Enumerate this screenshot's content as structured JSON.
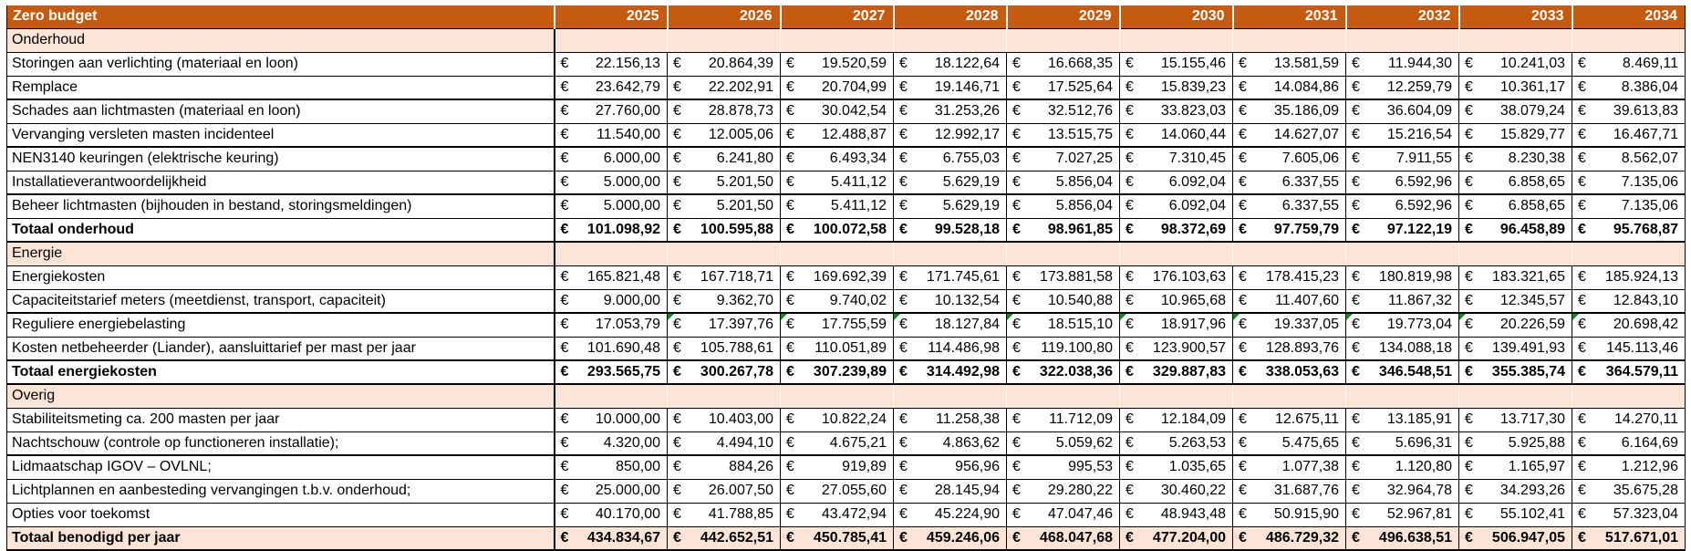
{
  "header": {
    "title": "Zero budget",
    "years": [
      "2025",
      "2026",
      "2027",
      "2028",
      "2029",
      "2030",
      "2031",
      "2032",
      "2033",
      "2034"
    ]
  },
  "currency_symbol": "€",
  "colors": {
    "header_bg": "#C55A11",
    "header_text": "#FFFFFF",
    "section_bg": "#FCE4D6",
    "border": "#000000",
    "flag_green": "#1E7E34"
  },
  "sections": [
    {
      "label": "Onderhoud",
      "rows": [
        {
          "label": "Storingen aan verlichting (materiaal en loon)",
          "values": [
            "22.156,13",
            "20.864,39",
            "19.520,59",
            "18.122,64",
            "16.668,35",
            "15.155,46",
            "13.581,59",
            "11.944,30",
            "10.241,03",
            "8.469,11"
          ]
        },
        {
          "label": "Remplace",
          "thick_below": true,
          "values": [
            "23.642,79",
            "22.202,91",
            "20.704,99",
            "19.146,71",
            "17.525,64",
            "15.839,23",
            "14.084,86",
            "12.259,79",
            "10.361,17",
            "8.386,04"
          ]
        },
        {
          "label": "Schades aan lichtmasten (materiaal en loon)",
          "values": [
            "27.760,00",
            "28.878,73",
            "30.042,54",
            "31.253,26",
            "32.512,76",
            "33.823,03",
            "35.186,09",
            "36.604,09",
            "38.079,24",
            "39.613,83"
          ]
        },
        {
          "label": "Vervanging versleten masten incidenteel",
          "thick_below": true,
          "values": [
            "11.540,00",
            "12.005,06",
            "12.488,87",
            "12.992,17",
            "13.515,75",
            "14.060,44",
            "14.627,07",
            "15.216,54",
            "15.829,77",
            "16.467,71"
          ]
        },
        {
          "label": "NEN3140 keuringen (elektrische keuring)",
          "values": [
            "6.000,00",
            "6.241,80",
            "6.493,34",
            "6.755,03",
            "7.027,25",
            "7.310,45",
            "7.605,06",
            "7.911,55",
            "8.230,38",
            "8.562,07"
          ]
        },
        {
          "label": "Installatieverantwoordelijkheid",
          "thick_below": true,
          "values": [
            "5.000,00",
            "5.201,50",
            "5.411,12",
            "5.629,19",
            "5.856,04",
            "6.092,04",
            "6.337,55",
            "6.592,96",
            "6.858,65",
            "7.135,06"
          ]
        },
        {
          "label": "Beheer lichtmasten (bijhouden in bestand, storingsmeldingen)",
          "values": [
            "5.000,00",
            "5.201,50",
            "5.411,12",
            "5.629,19",
            "5.856,04",
            "6.092,04",
            "6.337,55",
            "6.592,96",
            "6.858,65",
            "7.135,06"
          ]
        }
      ],
      "total": {
        "label": "Totaal onderhoud",
        "thick_below": true,
        "values": [
          "101.098,92",
          "100.595,88",
          "100.072,58",
          "99.528,18",
          "98.961,85",
          "98.372,69",
          "97.759,79",
          "97.122,19",
          "96.458,89",
          "95.768,87"
        ]
      }
    },
    {
      "label": "Energie",
      "rows": [
        {
          "label": "Energiekosten",
          "values": [
            "165.821,48",
            "167.718,71",
            "169.692,39",
            "171.745,61",
            "173.881,58",
            "176.103,63",
            "178.415,23",
            "180.819,98",
            "183.321,65",
            "185.924,13"
          ]
        },
        {
          "label": "Capaciteitstarief meters (meetdienst, transport, capaciteit)",
          "thick_below": true,
          "values": [
            "9.000,00",
            "9.362,70",
            "9.740,02",
            "10.132,54",
            "10.540,88",
            "10.965,68",
            "11.407,60",
            "11.867,32",
            "12.345,57",
            "12.843,10"
          ]
        },
        {
          "label": "Reguliere energiebelasting",
          "flags": [
            false,
            true,
            true,
            true,
            true,
            true,
            true,
            true,
            true,
            true
          ],
          "values": [
            "17.053,79",
            "17.397,76",
            "17.755,59",
            "18.127,84",
            "18.515,10",
            "18.917,96",
            "19.337,05",
            "19.773,04",
            "20.226,59",
            "20.698,42"
          ]
        },
        {
          "label": "Kosten netbeheerder (Liander), aansluittarief per mast per jaar",
          "thick_below": true,
          "values": [
            "101.690,48",
            "105.788,61",
            "110.051,89",
            "114.486,98",
            "119.100,80",
            "123.900,57",
            "128.893,76",
            "134.088,18",
            "139.491,93",
            "145.113,46"
          ]
        }
      ],
      "total": {
        "label": "Totaal energiekosten",
        "thick_below": true,
        "values": [
          "293.565,75",
          "300.267,78",
          "307.239,89",
          "314.492,98",
          "322.038,36",
          "329.887,83",
          "338.053,63",
          "346.548,51",
          "355.385,74",
          "364.579,11"
        ]
      }
    },
    {
      "label": "Overig",
      "rows": [
        {
          "label": "Stabiliteitsmeting ca. 200 masten per jaar",
          "values": [
            "10.000,00",
            "10.403,00",
            "10.822,24",
            "11.258,38",
            "11.712,09",
            "12.184,09",
            "12.675,11",
            "13.185,91",
            "13.717,30",
            "14.270,11"
          ]
        },
        {
          "label": "Nachtschouw (controle op functioneren installatie);",
          "thick_below": true,
          "values": [
            "4.320,00",
            "4.494,10",
            "4.675,21",
            "4.863,62",
            "5.059,62",
            "5.263,53",
            "5.475,65",
            "5.696,31",
            "5.925,88",
            "6.164,69"
          ]
        },
        {
          "label": "Lidmaatschap IGOV – OVLNL;",
          "values": [
            "850,00",
            "884,26",
            "919,89",
            "956,96",
            "995,53",
            "1.035,65",
            "1.077,38",
            "1.120,80",
            "1.165,97",
            "1.212,96"
          ]
        },
        {
          "label": "Lichtplannen en aanbesteding vervangingen t.b.v. onderhoud;",
          "values": [
            "25.000,00",
            "26.007,50",
            "27.055,60",
            "28.145,94",
            "29.280,22",
            "30.460,22",
            "31.687,76",
            "32.964,78",
            "34.293,26",
            "35.675,28"
          ]
        },
        {
          "label": "Opties voor toekomst",
          "values": [
            "40.170,00",
            "41.788,85",
            "43.472,94",
            "45.224,90",
            "47.047,46",
            "48.943,48",
            "50.915,90",
            "52.967,81",
            "55.102,41",
            "57.323,04"
          ]
        }
      ],
      "total": {
        "label": "Totaal benodigd per jaar",
        "highlight": true,
        "values": [
          "434.834,67",
          "442.652,51",
          "450.785,41",
          "459.246,06",
          "468.047,68",
          "477.204,00",
          "486.729,32",
          "496.638,51",
          "506.947,05",
          "517.671,01"
        ]
      }
    }
  ]
}
